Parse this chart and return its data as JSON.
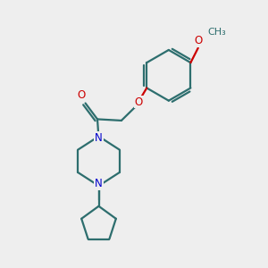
{
  "bg_color": "#eeeeee",
  "bond_color": "#2d6e6e",
  "N_color": "#0000cc",
  "O_color": "#cc0000",
  "line_width": 1.6,
  "font_size": 8.5,
  "figsize": [
    3.0,
    3.0
  ],
  "dpi": 100,
  "xlim": [
    0,
    10
  ],
  "ylim": [
    0,
    10
  ]
}
